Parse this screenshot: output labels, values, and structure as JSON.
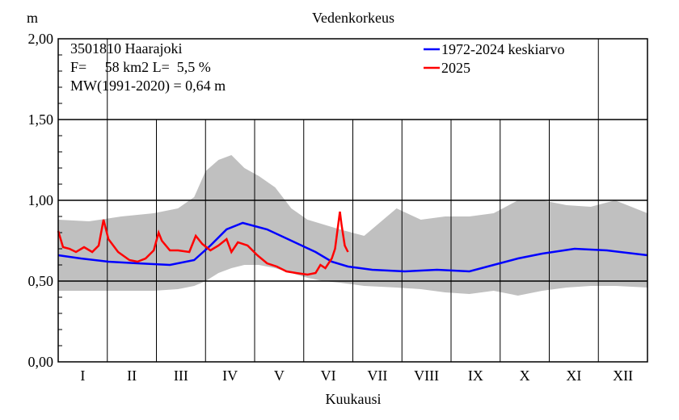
{
  "chart_data": {
    "type": "line",
    "title": "Vedenkorkeus",
    "ylabel": "m",
    "xlabel": "Kuukausi",
    "ylim": [
      0,
      2
    ],
    "yticks": [
      "0,00",
      "0,50",
      "1,00",
      "1,50",
      "2,00"
    ],
    "ytick_values": [
      0,
      0.5,
      1.0,
      1.5,
      2.0
    ],
    "months": [
      "I",
      "II",
      "III",
      "IV",
      "V",
      "VI",
      "VII",
      "VIII",
      "IX",
      "X",
      "XI",
      "XII"
    ],
    "info_lines": [
      "3501810 Haarajoki",
      "F=     58 km2 L=  5,5 %",
      "MW(1991-2020) = 0,64 m"
    ],
    "legend_position": "top-right",
    "grid": true,
    "colors": {
      "mean": "#0000ff",
      "current": "#ff0000",
      "range": "#c0c0c0"
    },
    "series": [
      {
        "name": "1972-2024 keskiarvo",
        "day": [
          1,
          15,
          32,
          50,
          70,
          85,
          95,
          105,
          115,
          130,
          145,
          160,
          170,
          180,
          195,
          215,
          235,
          255,
          270,
          285,
          300,
          320,
          340,
          365
        ],
        "values": [
          0.66,
          0.64,
          0.62,
          0.61,
          0.6,
          0.63,
          0.72,
          0.82,
          0.86,
          0.82,
          0.75,
          0.68,
          0.62,
          0.59,
          0.57,
          0.56,
          0.57,
          0.56,
          0.6,
          0.64,
          0.67,
          0.7,
          0.69,
          0.66
        ]
      },
      {
        "name": "2025",
        "day": [
          1,
          4,
          8,
          12,
          17,
          22,
          26,
          29,
          32,
          38,
          45,
          50,
          55,
          60,
          63,
          65,
          70,
          75,
          82,
          86,
          90,
          95,
          100,
          105,
          108,
          112,
          118,
          124,
          130,
          136,
          142,
          148,
          155,
          160,
          163,
          166,
          170,
          172,
          175,
          176,
          178,
          180
        ],
        "values": [
          0.81,
          0.71,
          0.7,
          0.68,
          0.71,
          0.68,
          0.72,
          0.88,
          0.76,
          0.68,
          0.63,
          0.62,
          0.64,
          0.69,
          0.8,
          0.75,
          0.69,
          0.69,
          0.68,
          0.78,
          0.73,
          0.69,
          0.72,
          0.76,
          0.68,
          0.74,
          0.72,
          0.66,
          0.61,
          0.59,
          0.56,
          0.55,
          0.54,
          0.55,
          0.6,
          0.58,
          0.64,
          0.7,
          0.93,
          0.85,
          0.72,
          0.68
        ]
      }
    ],
    "range_band": {
      "day": [
        1,
        20,
        40,
        60,
        75,
        85,
        92,
        100,
        108,
        116,
        125,
        135,
        145,
        155,
        165,
        175,
        190,
        210,
        225,
        240,
        255,
        270,
        285,
        300,
        315,
        330,
        345,
        365
      ],
      "low": [
        0.44,
        0.44,
        0.44,
        0.44,
        0.45,
        0.47,
        0.5,
        0.55,
        0.58,
        0.6,
        0.6,
        0.58,
        0.55,
        0.52,
        0.5,
        0.49,
        0.47,
        0.46,
        0.45,
        0.43,
        0.42,
        0.44,
        0.41,
        0.44,
        0.46,
        0.47,
        0.47,
        0.46
      ],
      "high": [
        0.88,
        0.87,
        0.9,
        0.92,
        0.95,
        1.02,
        1.18,
        1.25,
        1.28,
        1.2,
        1.15,
        1.08,
        0.95,
        0.88,
        0.85,
        0.82,
        0.78,
        0.95,
        0.88,
        0.9,
        0.9,
        0.92,
        1.0,
        1.0,
        0.97,
        0.96,
        1.0,
        0.92
      ]
    }
  }
}
